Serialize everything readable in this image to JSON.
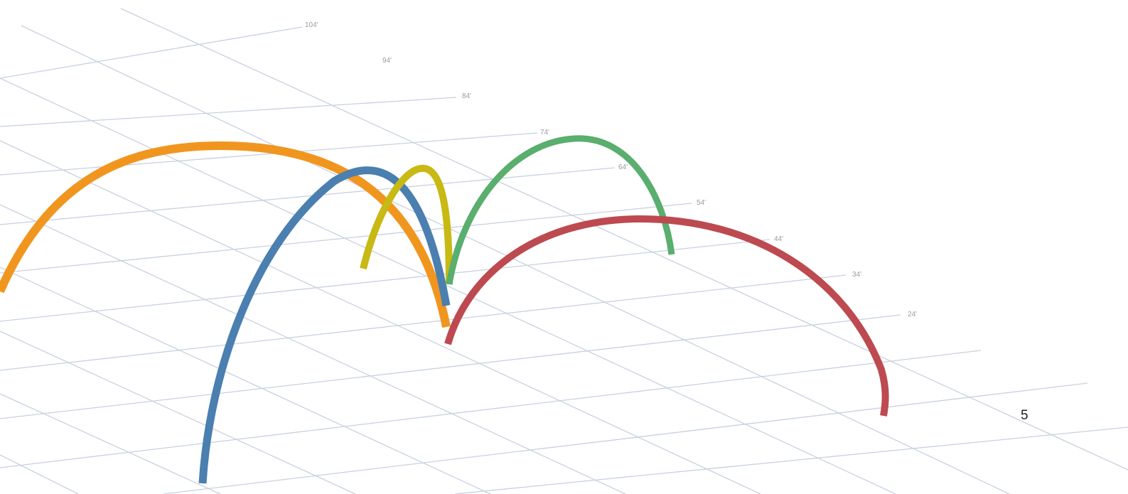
{
  "page": {
    "number": "5"
  },
  "chart_data": {
    "type": "area",
    "description_of_marks": "3D arcs over a perspective ground grid",
    "tick_labels": [
      "104'",
      "94'",
      "84'",
      "74'",
      "64'",
      "54'",
      "44'",
      "34'",
      "24'"
    ],
    "distances_ft": [
      104,
      94,
      84,
      74,
      64,
      54,
      44,
      34,
      24
    ],
    "grid": true,
    "series": [
      {
        "color": "#f0961f"
      },
      {
        "color": "#4a7fb0"
      },
      {
        "color": "#c8b914"
      },
      {
        "color": "#5aae6e"
      },
      {
        "color": "#bd4a50"
      }
    ]
  }
}
